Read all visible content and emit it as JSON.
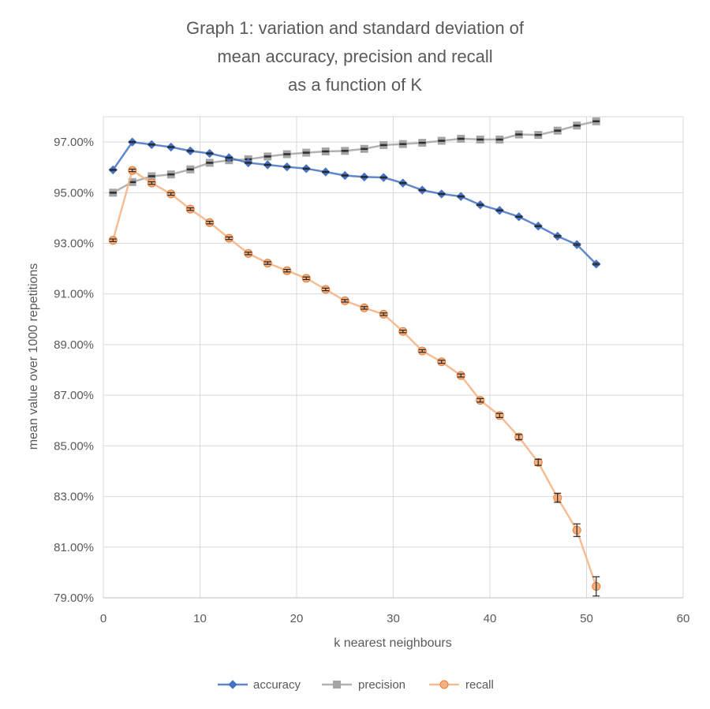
{
  "chart_data": {
    "type": "line",
    "title_lines": [
      "Graph 1: variation and standard deviation of",
      "mean accuracy, precision and recall",
      "as a function of K"
    ],
    "xlabel": "k nearest neighbours",
    "ylabel": "mean value over 1000 repetitions",
    "xlim": [
      0,
      60
    ],
    "ylim": [
      0.79,
      0.98
    ],
    "x_ticks": [
      0,
      10,
      20,
      30,
      40,
      50,
      60
    ],
    "x_tick_labels": [
      "0",
      "10",
      "20",
      "30",
      "40",
      "50",
      "60"
    ],
    "y_ticks": [
      0.79,
      0.81,
      0.83,
      0.85,
      0.87,
      0.89,
      0.91,
      0.93,
      0.95,
      0.97
    ],
    "y_tick_labels": [
      "79.00%",
      "81.00%",
      "83.00%",
      "85.00%",
      "87.00%",
      "89.00%",
      "91.00%",
      "93.00%",
      "95.00%",
      "97.00%"
    ],
    "grid": true,
    "legend_position": "bottom",
    "x": [
      1,
      3,
      5,
      7,
      9,
      11,
      13,
      15,
      17,
      19,
      21,
      23,
      25,
      27,
      29,
      31,
      33,
      35,
      37,
      39,
      41,
      43,
      45,
      47,
      49,
      51
    ],
    "series": [
      {
        "name": "accuracy",
        "color": "#4472c4",
        "marker": "diamond",
        "values": [
          0.959,
          0.97,
          0.969,
          0.968,
          0.9665,
          0.9655,
          0.9638,
          0.9618,
          0.961,
          0.9602,
          0.9595,
          0.9582,
          0.9568,
          0.9562,
          0.956,
          0.9538,
          0.951,
          0.9495,
          0.9485,
          0.9452,
          0.943,
          0.9405,
          0.9368,
          0.9328,
          0.9295,
          0.9218
        ],
        "errors": [
          0.0002,
          0.0002,
          0.0002,
          0.0002,
          0.0002,
          0.0002,
          0.0002,
          0.0002,
          0.0002,
          0.0002,
          0.0002,
          0.0002,
          0.0002,
          0.0002,
          0.0002,
          0.0002,
          0.0002,
          0.0002,
          0.0002,
          0.0002,
          0.0002,
          0.0002,
          0.0002,
          0.0003,
          0.0003,
          0.0003
        ]
      },
      {
        "name": "precision",
        "color": "#a5a5a5",
        "marker": "square",
        "values": [
          0.95,
          0.9542,
          0.9565,
          0.9572,
          0.9592,
          0.9618,
          0.9628,
          0.9632,
          0.9643,
          0.9652,
          0.9658,
          0.9663,
          0.9665,
          0.9673,
          0.9688,
          0.9692,
          0.9697,
          0.9705,
          0.9713,
          0.971,
          0.971,
          0.973,
          0.9728,
          0.9745,
          0.9765,
          0.9782
        ],
        "errors": [
          0.0002,
          0.0002,
          0.0002,
          0.0002,
          0.0002,
          0.0002,
          0.0002,
          0.0002,
          0.0002,
          0.0002,
          0.0002,
          0.0002,
          0.0002,
          0.0002,
          0.0002,
          0.0002,
          0.0002,
          0.0002,
          0.0002,
          0.0002,
          0.0002,
          0.0002,
          0.0002,
          0.0002,
          0.0002,
          0.0002
        ]
      },
      {
        "name": "recall",
        "color": "#f4b183",
        "edge_color": "#ed7d31",
        "marker": "circle",
        "values": [
          0.9312,
          0.9588,
          0.9538,
          0.9495,
          0.9435,
          0.9382,
          0.932,
          0.926,
          0.9222,
          0.9192,
          0.9162,
          0.9118,
          0.9073,
          0.9045,
          0.902,
          0.8952,
          0.8875,
          0.8832,
          0.8778,
          0.868,
          0.862,
          0.8535,
          0.8435,
          0.8295,
          0.8167,
          0.7945
        ],
        "errors": [
          0.0005,
          0.0005,
          0.0005,
          0.0005,
          0.0005,
          0.0005,
          0.0005,
          0.0005,
          0.0005,
          0.0005,
          0.0005,
          0.0005,
          0.0005,
          0.0005,
          0.0005,
          0.0005,
          0.0005,
          0.0006,
          0.0006,
          0.0007,
          0.0008,
          0.001,
          0.0012,
          0.0018,
          0.0025,
          0.0038
        ]
      }
    ]
  }
}
